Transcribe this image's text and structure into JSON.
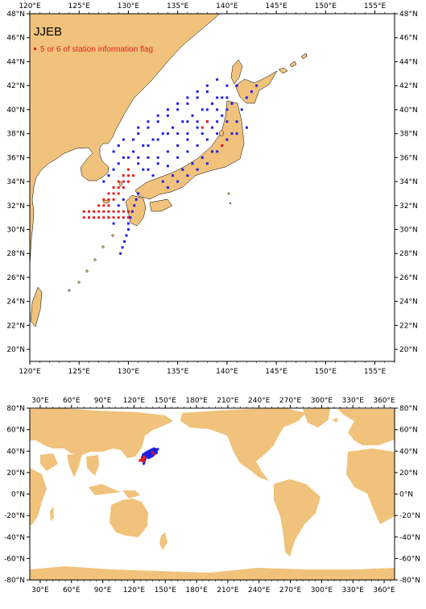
{
  "top_map": {
    "title": "JJEB",
    "legend_label": "5 or 6 of station information flag",
    "x_ticks": [
      "120°E",
      "125°E",
      "130°E",
      "135°E",
      "140°E",
      "145°E",
      "150°E",
      "155°E"
    ],
    "y_ticks": [
      "20°N",
      "22°N",
      "24°N",
      "26°N",
      "28°N",
      "30°N",
      "32°N",
      "34°N",
      "36°N",
      "38°N",
      "40°N",
      "42°N",
      "44°N",
      "46°N",
      "48°N"
    ],
    "lon_range": [
      120,
      157
    ],
    "lat_range": [
      19,
      48
    ]
  },
  "bottom_map": {
    "x_ticks": [
      "30°E",
      "60°E",
      "90°E",
      "120°E",
      "150°E",
      "180°E",
      "210°E",
      "240°E",
      "270°E",
      "300°E",
      "330°E",
      "360°E"
    ],
    "y_ticks": [
      "80°N",
      "60°N",
      "40°N",
      "20°N",
      "0°N",
      "-20°N",
      "-40°N",
      "-60°N",
      "-80°N"
    ],
    "lon_range": [
      20,
      370
    ],
    "lat_range": [
      -80,
      80
    ]
  },
  "colors": {
    "land": "#f0c27b",
    "ocean": "#ffffff",
    "station_normal": "#1f1fe6",
    "station_flagged": "#e61e1e",
    "frame": "#000000"
  },
  "chart_data": {
    "type": "scatter",
    "series": [
      {
        "name": "",
        "color": "#1f1fe6",
        "points": [
          [
            132,
            35
          ],
          [
            133,
            35.5
          ],
          [
            134,
            35.3
          ],
          [
            135,
            36
          ],
          [
            136,
            36.5
          ],
          [
            137,
            37
          ],
          [
            138,
            37.5
          ],
          [
            139,
            38
          ],
          [
            140,
            39
          ],
          [
            137.5,
            38
          ],
          [
            138.5,
            38.5
          ],
          [
            139.5,
            39.5
          ],
          [
            136,
            37.5
          ],
          [
            135,
            37
          ],
          [
            134,
            36.5
          ],
          [
            133,
            36
          ],
          [
            132,
            36
          ],
          [
            131,
            36
          ],
          [
            130.5,
            36.5
          ],
          [
            131.5,
            37
          ],
          [
            132.5,
            37.5
          ],
          [
            133.5,
            38
          ],
          [
            134.5,
            38.5
          ],
          [
            135.5,
            39
          ],
          [
            136.5,
            39.5
          ],
          [
            137.5,
            40
          ],
          [
            138.5,
            40.5
          ],
          [
            139.5,
            41
          ],
          [
            138,
            41.5
          ],
          [
            137,
            41
          ],
          [
            136,
            40.5
          ],
          [
            135,
            40
          ],
          [
            134,
            39.5
          ],
          [
            133,
            39
          ],
          [
            132,
            38.5
          ],
          [
            131,
            38
          ],
          [
            130.5,
            37.5
          ],
          [
            129.5,
            37.5
          ],
          [
            129,
            37
          ],
          [
            128.5,
            36.5
          ],
          [
            139,
            39
          ],
          [
            140,
            40
          ],
          [
            140.5,
            40.5
          ],
          [
            139,
            40
          ],
          [
            138,
            39
          ],
          [
            137,
            38.5
          ],
          [
            136,
            38
          ],
          [
            135,
            38
          ],
          [
            134,
            38
          ],
          [
            133,
            37.5
          ],
          [
            132,
            37
          ],
          [
            131,
            35.5
          ],
          [
            131.5,
            35
          ],
          [
            132.5,
            34.5
          ],
          [
            133.5,
            34
          ],
          [
            134.5,
            34.5
          ],
          [
            135.5,
            35
          ],
          [
            136.5,
            35.5
          ],
          [
            137.5,
            36
          ],
          [
            138.5,
            36.5
          ],
          [
            139.5,
            37
          ],
          [
            140.5,
            38
          ],
          [
            141,
            39
          ],
          [
            141.5,
            40
          ],
          [
            142,
            41
          ],
          [
            142.5,
            41.5
          ],
          [
            143,
            42
          ],
          [
            141,
            42
          ],
          [
            140,
            42
          ],
          [
            139,
            42.5
          ],
          [
            138,
            42
          ],
          [
            141,
            38
          ],
          [
            142,
            38.5
          ],
          [
            140,
            37.5
          ],
          [
            139,
            36.5
          ],
          [
            138,
            35.5
          ],
          [
            137,
            35
          ],
          [
            136,
            34.5
          ],
          [
            135,
            34
          ],
          [
            134,
            33.5
          ],
          [
            131,
            33
          ],
          [
            130.8,
            32.5
          ],
          [
            130.6,
            32
          ],
          [
            130.4,
            31.5
          ],
          [
            130.2,
            31
          ],
          [
            130,
            30.5
          ],
          [
            130,
            30
          ],
          [
            129.8,
            29.5
          ],
          [
            129.6,
            29
          ],
          [
            129.4,
            28.5
          ],
          [
            129.2,
            28
          ],
          [
            129,
            32
          ],
          [
            129.5,
            32.5
          ],
          [
            128,
            31
          ],
          [
            128.5,
            30.5
          ],
          [
            127.5,
            34
          ],
          [
            128,
            34.5
          ],
          [
            128.5,
            35
          ],
          [
            129,
            35.5
          ],
          [
            129.5,
            36
          ],
          [
            130,
            36
          ],
          [
            131,
            38.5
          ],
          [
            132,
            39
          ],
          [
            133,
            39.5
          ],
          [
            134,
            40
          ],
          [
            135,
            40.5
          ],
          [
            136,
            41
          ],
          [
            137,
            41.5
          ],
          [
            136,
            39
          ],
          [
            137,
            39
          ],
          [
            138,
            40
          ],
          [
            139,
            41
          ],
          [
            140,
            41
          ]
        ]
      },
      {
        "name": "5 or 6 of station information flag",
        "color": "#e61e1e",
        "points": [
          [
            125.5,
            31.5
          ],
          [
            126,
            31.5
          ],
          [
            126.5,
            31.5
          ],
          [
            127,
            31.5
          ],
          [
            127.5,
            31.5
          ],
          [
            128,
            31.5
          ],
          [
            128.5,
            31.5
          ],
          [
            129,
            31.5
          ],
          [
            129.5,
            31.5
          ],
          [
            130,
            31.5
          ],
          [
            125.5,
            31
          ],
          [
            126,
            31
          ],
          [
            126.5,
            31
          ],
          [
            127,
            31
          ],
          [
            127.5,
            31
          ],
          [
            128,
            31
          ],
          [
            128.5,
            31
          ],
          [
            129,
            31
          ],
          [
            129.5,
            31
          ],
          [
            130,
            31
          ],
          [
            127,
            32
          ],
          [
            127.5,
            32.5
          ],
          [
            128,
            33
          ],
          [
            128.5,
            33.5
          ],
          [
            129,
            34
          ],
          [
            129.5,
            34.5
          ],
          [
            130,
            35
          ],
          [
            127.5,
            32
          ],
          [
            128,
            32.5
          ],
          [
            128.5,
            33
          ],
          [
            129,
            33.5
          ],
          [
            129.5,
            34
          ],
          [
            130,
            34.5
          ],
          [
            128,
            32
          ],
          [
            128.5,
            32.5
          ],
          [
            129,
            33
          ],
          [
            129.5,
            33.5
          ],
          [
            130,
            34
          ],
          [
            130.5,
            34.5
          ],
          [
            137.5,
            38.5
          ],
          [
            138,
            39
          ],
          [
            139.5,
            37
          ]
        ]
      }
    ]
  }
}
